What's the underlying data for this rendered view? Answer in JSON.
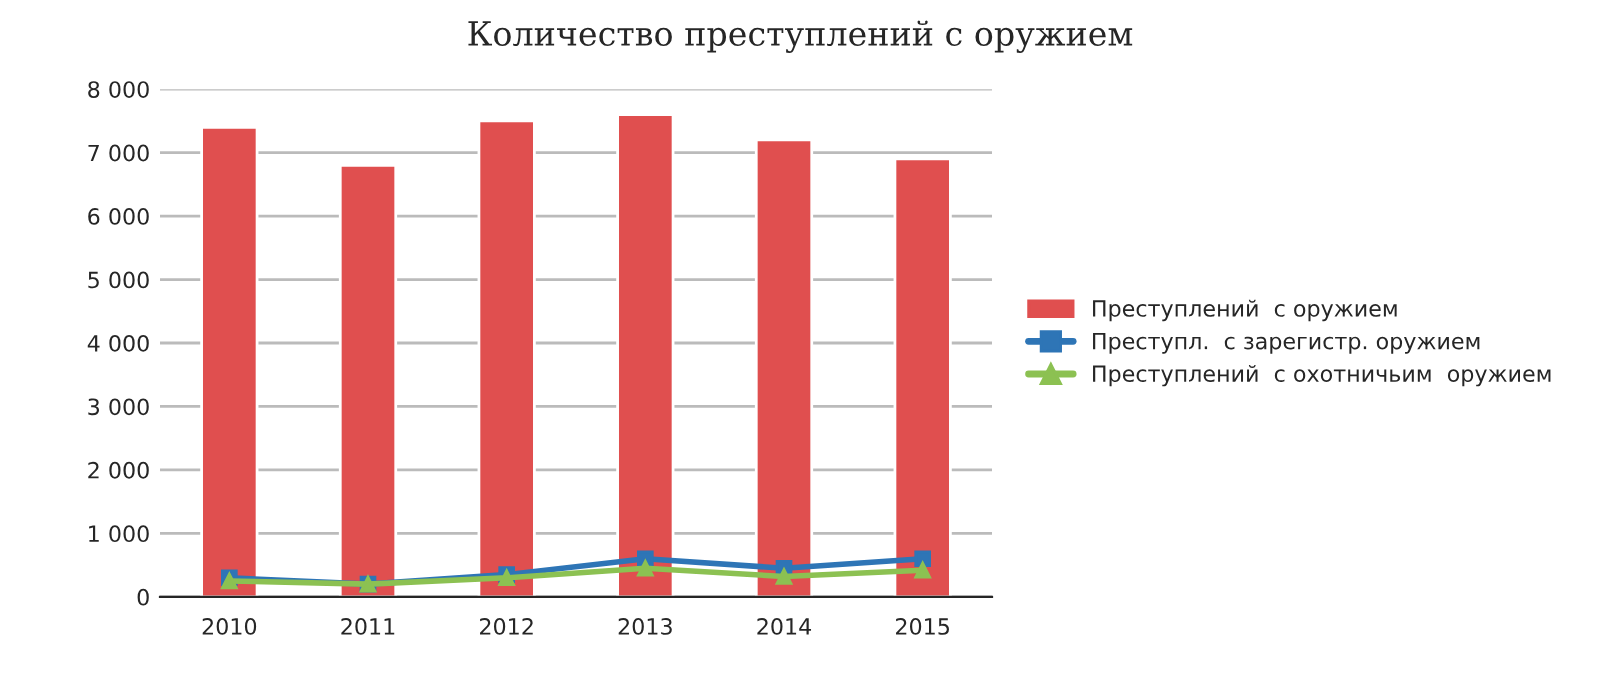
{
  "chart_data": {
    "type": "bar",
    "title": "Количество преступлений с оружием",
    "categories": [
      "2010",
      "2011",
      "2012",
      "2013",
      "2014",
      "2015"
    ],
    "series": [
      {
        "name": "Преступлений  с оружием",
        "color": "#e04f4f",
        "values": [
          7400,
          6800,
          7500,
          7600,
          7200,
          6900
        ]
      },
      {
        "name": "Преступл.  с зарегистр. оружием",
        "type": "line",
        "marker": "square",
        "color": "#2e75b6",
        "values": [
          300,
          200,
          350,
          600,
          450,
          600
        ]
      },
      {
        "name": "Преступлений  с охотничьим  оружием",
        "type": "line",
        "marker": "triangle",
        "color": "#8cc152",
        "values": [
          250,
          200,
          300,
          450,
          320,
          420
        ]
      }
    ],
    "ylim": [
      0,
      8000
    ],
    "yticks": [
      {
        "value": 0,
        "label": "0"
      },
      {
        "value": 1000,
        "label": "1 000"
      },
      {
        "value": 2000,
        "label": "2 000"
      },
      {
        "value": 3000,
        "label": "3 000"
      },
      {
        "value": 4000,
        "label": "4 000"
      },
      {
        "value": 5000,
        "label": "5 000"
      },
      {
        "value": 6000,
        "label": "6 000"
      },
      {
        "value": 7000,
        "label": "7 000"
      },
      {
        "value": 8000,
        "label": "8 000"
      }
    ],
    "grid": "y",
    "legend": "right"
  }
}
